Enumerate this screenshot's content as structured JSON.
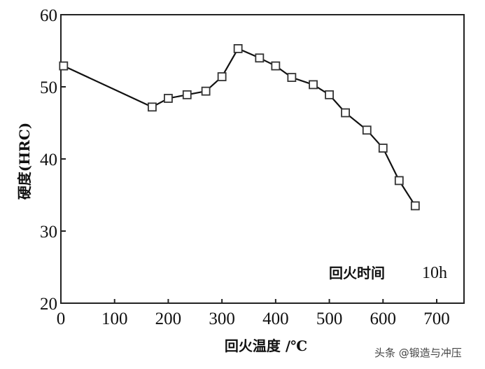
{
  "chart_data": {
    "type": "line",
    "title": "",
    "xlabel": "回火温度 /℃",
    "ylabel": "硬度(HRC)",
    "xlim": [
      0,
      750
    ],
    "ylim": [
      20,
      60
    ],
    "xticks": [
      0,
      100,
      200,
      300,
      400,
      500,
      600,
      700
    ],
    "yticks": [
      20,
      30,
      40,
      50,
      60
    ],
    "grid": false,
    "legend": null,
    "annotations": [
      {
        "text": "回火时间 10h",
        "position": "lower-right inside plot"
      }
    ],
    "series": [
      {
        "name": "硬度",
        "marker": "open-square",
        "color": "#111111",
        "x": [
          5,
          170,
          200,
          235,
          270,
          300,
          330,
          370,
          400,
          430,
          470,
          500,
          530,
          570,
          600,
          630,
          660
        ],
        "y": [
          52.9,
          47.2,
          48.4,
          48.9,
          49.4,
          51.4,
          55.3,
          54.0,
          52.9,
          51.3,
          50.3,
          48.9,
          46.4,
          44.0,
          41.5,
          37.0,
          33.5
        ]
      }
    ]
  },
  "labels": {
    "xlabel": "回火温度 /℃",
    "ylabel": "硬度(HRC)",
    "annotation_text": "回火时间",
    "annotation_value": "10h",
    "watermark": "头条 @锻造与冲压"
  }
}
